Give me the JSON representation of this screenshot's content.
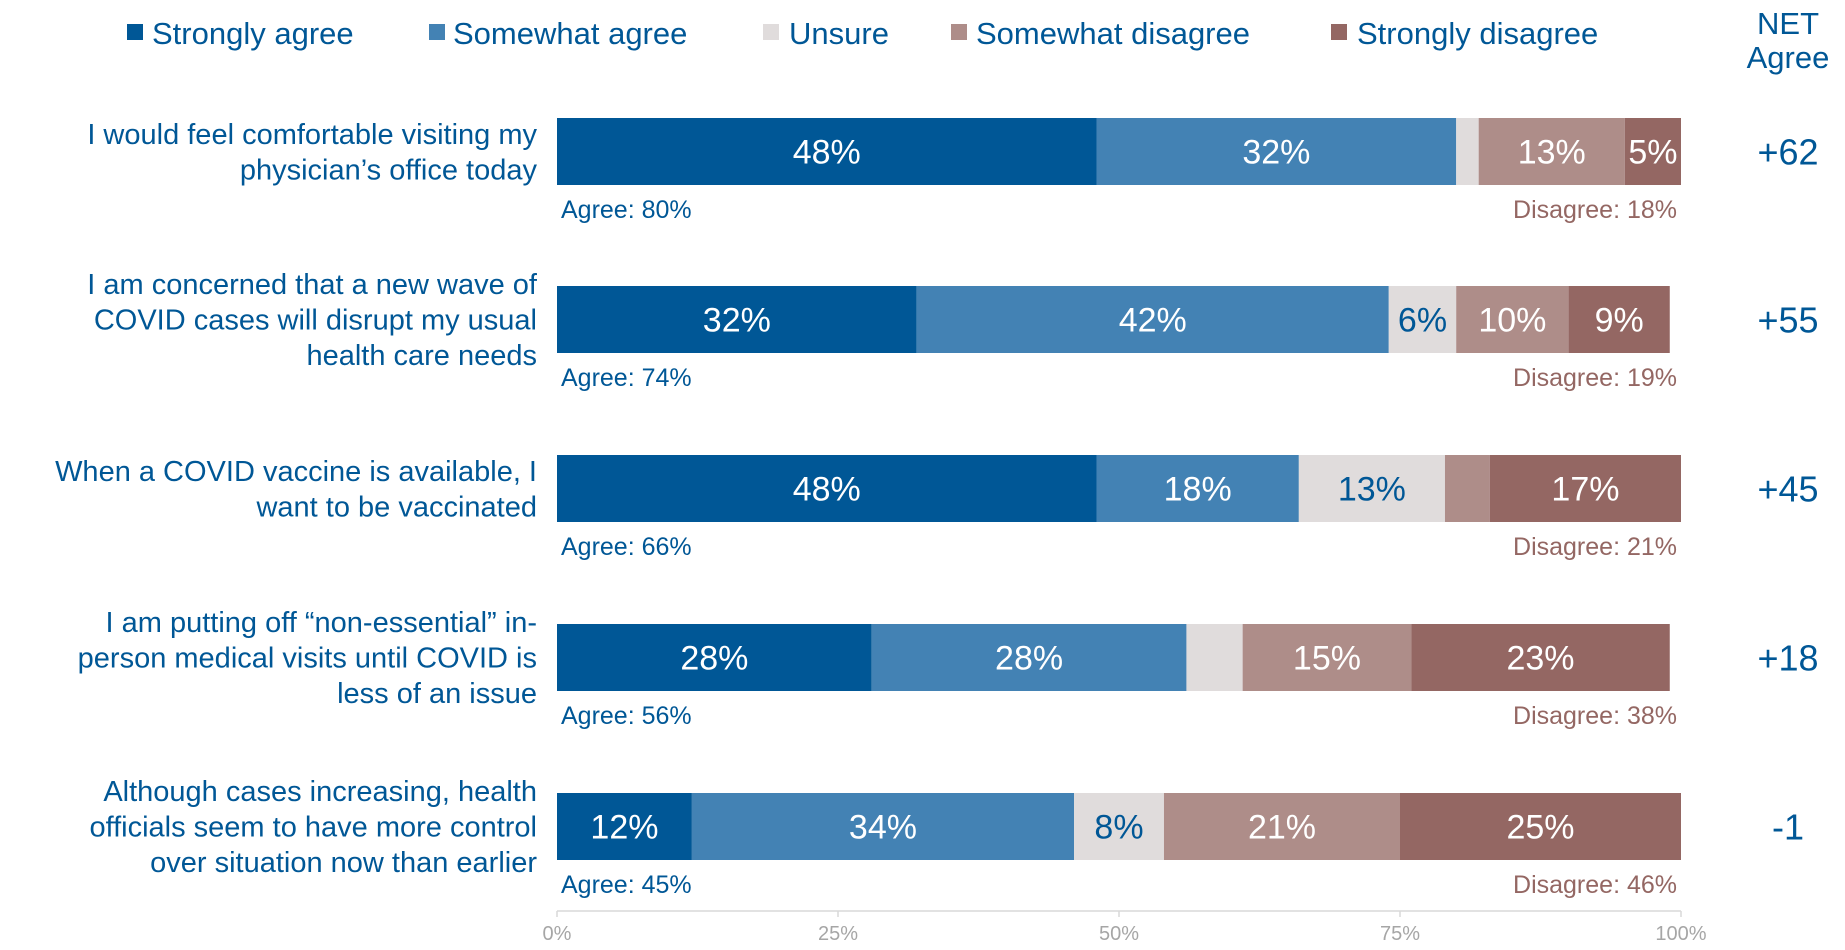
{
  "colors": {
    "strongly_agree": "#005796",
    "somewhat_agree": "#4382b4",
    "unsure": "#e0dcdc",
    "somewhat_disagree": "#ae8d89",
    "strongly_disagree": "#946763",
    "label_blue": "#005796",
    "disagree_text": "#946763",
    "axis_text": "#a6a6a6",
    "axis_line": "#d9d9d9"
  },
  "chart_data": {
    "type": "bar",
    "orientation": "horizontal-stacked-100",
    "legend_position": "top",
    "legend": [
      "Strongly agree",
      "Somewhat agree",
      "Unsure",
      "Somewhat disagree",
      "Strongly disagree"
    ],
    "net_header": [
      "NET",
      "Agree"
    ],
    "x_ticks": [
      "0%",
      "25%",
      "50%",
      "75%",
      "100%"
    ],
    "xlim": [
      0,
      100
    ],
    "grid": false,
    "categories": [
      [
        "I would feel comfortable visiting my",
        "physician’s office today"
      ],
      [
        "I am concerned that a new wave of",
        "COVID cases will disrupt my usual",
        "health care needs"
      ],
      [
        "When a COVID vaccine is available, I",
        "want to be vaccinated"
      ],
      [
        "I am putting off “non-essential” in-",
        "person medical visits until COVID is",
        "less of an issue"
      ],
      [
        "Although cases increasing, health",
        "officials seem to have more control",
        "over situation now than earlier"
      ]
    ],
    "series": [
      {
        "name": "Strongly agree",
        "values": [
          48,
          32,
          48,
          28,
          12
        ],
        "labels": [
          "48%",
          "32%",
          "48%",
          "28%",
          "12%"
        ]
      },
      {
        "name": "Somewhat agree",
        "values": [
          32,
          42,
          18,
          28,
          34
        ],
        "labels": [
          "32%",
          "42%",
          "18%",
          "28%",
          "34%"
        ]
      },
      {
        "name": "Unsure",
        "values": [
          2,
          6,
          13,
          5,
          8
        ],
        "labels": [
          "",
          "6%",
          "13%",
          "",
          "8%"
        ]
      },
      {
        "name": "Somewhat disagree",
        "values": [
          13,
          10,
          4,
          15,
          21
        ],
        "labels": [
          "13%",
          "10%",
          "",
          "15%",
          "21%"
        ]
      },
      {
        "name": "Strongly disagree",
        "values": [
          5,
          9,
          17,
          23,
          25
        ],
        "labels": [
          "5%",
          "9%",
          "17%",
          "23%",
          "25%"
        ]
      }
    ],
    "agree_totals": [
      "Agree: 80%",
      "Agree: 74%",
      "Agree: 66%",
      "Agree: 56%",
      "Agree: 45%"
    ],
    "disagree_totals": [
      "Disagree: 18%",
      "Disagree: 19%",
      "Disagree: 21%",
      "Disagree: 38%",
      "Disagree: 46%"
    ],
    "net_agree": [
      "+62",
      "+55",
      "+45",
      "+18",
      "-1"
    ]
  }
}
